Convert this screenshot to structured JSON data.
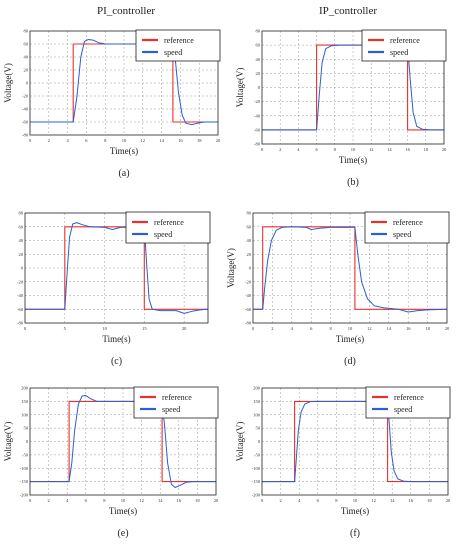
{
  "column_titles": [
    "PI_controller",
    "IP_controller"
  ],
  "chart_data": [
    {
      "type": "line",
      "panel": "a",
      "caption": "(a)",
      "xlabel": "Time(s)",
      "ylabel": "Voltage(V)",
      "xlim": [
        0,
        20
      ],
      "ylim": [
        -80,
        80
      ],
      "xticks": [
        0,
        2,
        4,
        6,
        8,
        10,
        12,
        14,
        16,
        18,
        20
      ],
      "yticks": [
        -80,
        -60,
        -40,
        -20,
        0,
        20,
        40,
        60,
        80
      ],
      "grid": true,
      "legend_position": "top-right",
      "series": [
        {
          "name": "reference",
          "color": "#e8312a",
          "points": [
            [
              0,
              -60
            ],
            [
              4.6,
              -60
            ],
            [
              4.6,
              60
            ],
            [
              15.2,
              60
            ],
            [
              15.2,
              -60
            ],
            [
              20,
              -60
            ]
          ]
        },
        {
          "name": "speed",
          "color": "#2a5fd6",
          "points": [
            [
              0,
              -60
            ],
            [
              4.6,
              -60
            ],
            [
              5.0,
              -20
            ],
            [
              5.4,
              40
            ],
            [
              5.8,
              64
            ],
            [
              6.2,
              67
            ],
            [
              6.7,
              66
            ],
            [
              7.3,
              62
            ],
            [
              8.0,
              60
            ],
            [
              15.2,
              60
            ],
            [
              15.5,
              30
            ],
            [
              15.8,
              -15
            ],
            [
              16.2,
              -50
            ],
            [
              16.6,
              -62
            ],
            [
              17.2,
              -64
            ],
            [
              17.8,
              -62
            ],
            [
              18.5,
              -60
            ],
            [
              20,
              -60
            ]
          ]
        }
      ]
    },
    {
      "type": "line",
      "panel": "b",
      "caption": "(b)",
      "xlabel": "Time(s)",
      "ylabel": "Voltage(V)",
      "xlim": [
        0,
        20
      ],
      "ylim": [
        -80,
        80
      ],
      "xticks": [
        0,
        2,
        4,
        6,
        8,
        10,
        12,
        14,
        16,
        18,
        20
      ],
      "yticks": [
        -80,
        -60,
        -40,
        -20,
        0,
        20,
        40,
        60,
        80
      ],
      "grid": true,
      "legend_position": "top-right",
      "series": [
        {
          "name": "reference",
          "color": "#e8312a",
          "points": [
            [
              0,
              -60
            ],
            [
              6,
              -60
            ],
            [
              6,
              60
            ],
            [
              16,
              60
            ],
            [
              16,
              -60
            ],
            [
              20,
              -60
            ]
          ]
        },
        {
          "name": "speed",
          "color": "#2a5fd6",
          "points": [
            [
              0,
              -60
            ],
            [
              6,
              -60
            ],
            [
              6.3,
              -10
            ],
            [
              6.6,
              35
            ],
            [
              7.0,
              55
            ],
            [
              7.6,
              59
            ],
            [
              8.5,
              60
            ],
            [
              16,
              60
            ],
            [
              16.3,
              10
            ],
            [
              16.6,
              -35
            ],
            [
              17.0,
              -55
            ],
            [
              17.6,
              -59
            ],
            [
              18.5,
              -60
            ],
            [
              20,
              -60
            ]
          ]
        }
      ]
    },
    {
      "type": "line",
      "panel": "c",
      "caption": "(c)",
      "xlabel": "Time(s)",
      "ylabel": "",
      "xlim": [
        0,
        23
      ],
      "ylim": [
        -80,
        80
      ],
      "xticks": [
        0,
        5,
        10,
        15,
        20
      ],
      "yticks": [
        -80,
        -60,
        -40,
        -20,
        0,
        20,
        40,
        60,
        80
      ],
      "grid": true,
      "legend_position": "top-right",
      "series": [
        {
          "name": "reference",
          "color": "#e8312a",
          "points": [
            [
              0,
              -60
            ],
            [
              5,
              -60
            ],
            [
              5,
              60
            ],
            [
              15,
              60
            ],
            [
              15,
              -60
            ],
            [
              23,
              -60
            ]
          ]
        },
        {
          "name": "speed",
          "color": "#2a5fd6",
          "points": [
            [
              0,
              -60
            ],
            [
              5,
              -60
            ],
            [
              5.3,
              -5
            ],
            [
              5.6,
              45
            ],
            [
              6.0,
              64
            ],
            [
              6.5,
              66
            ],
            [
              7.2,
              63
            ],
            [
              8.2,
              60
            ],
            [
              10,
              59
            ],
            [
              11,
              56
            ],
            [
              12,
              59
            ],
            [
              15,
              60
            ],
            [
              15.3,
              5
            ],
            [
              15.6,
              -45
            ],
            [
              16.0,
              -60
            ],
            [
              17,
              -62
            ],
            [
              19,
              -62
            ],
            [
              20,
              -66
            ],
            [
              21,
              -63
            ],
            [
              22,
              -61
            ],
            [
              23,
              -60
            ]
          ]
        }
      ]
    },
    {
      "type": "line",
      "panel": "d",
      "caption": "(d)",
      "xlabel": "Time(s)",
      "ylabel": "Voltage(V)",
      "xlim": [
        0,
        20
      ],
      "ylim": [
        -80,
        80
      ],
      "xticks": [
        0,
        2,
        4,
        6,
        8,
        10,
        12,
        14,
        16,
        18,
        20
      ],
      "yticks": [
        -80,
        -60,
        -40,
        -20,
        0,
        20,
        40,
        60,
        80
      ],
      "grid": true,
      "legend_position": "top-right",
      "series": [
        {
          "name": "reference",
          "color": "#e8312a",
          "points": [
            [
              0,
              -60
            ],
            [
              1,
              -60
            ],
            [
              1,
              60
            ],
            [
              10.5,
              60
            ],
            [
              10.5,
              -60
            ],
            [
              20,
              -60
            ]
          ]
        },
        {
          "name": "speed",
          "color": "#2a5fd6",
          "points": [
            [
              0,
              -60
            ],
            [
              1,
              -60
            ],
            [
              1.2,
              -30
            ],
            [
              1.5,
              10
            ],
            [
              1.9,
              40
            ],
            [
              2.4,
              55
            ],
            [
              3.0,
              59
            ],
            [
              4,
              60
            ],
            [
              5.5,
              59
            ],
            [
              6,
              56
            ],
            [
              7,
              58
            ],
            [
              8,
              59
            ],
            [
              10.5,
              59
            ],
            [
              10.8,
              20
            ],
            [
              11.2,
              -20
            ],
            [
              11.8,
              -45
            ],
            [
              12.5,
              -55
            ],
            [
              13.5,
              -58
            ],
            [
              15,
              -60
            ],
            [
              16,
              -64
            ],
            [
              17,
              -62
            ],
            [
              18,
              -61
            ],
            [
              20,
              -60
            ]
          ]
        }
      ]
    },
    {
      "type": "line",
      "panel": "e",
      "caption": "(e)",
      "xlabel": "Time(s)",
      "ylabel": "Voltage(V)",
      "xlim": [
        0,
        20
      ],
      "ylim": [
        -200,
        200
      ],
      "xticks": [
        0,
        2,
        4,
        6,
        8,
        10,
        12,
        14,
        16,
        18,
        20
      ],
      "yticks": [
        -200,
        -150,
        -100,
        -50,
        0,
        50,
        100,
        150,
        200
      ],
      "grid": true,
      "legend_position": "top-right",
      "series": [
        {
          "name": "reference",
          "color": "#e8312a",
          "points": [
            [
              0,
              -150
            ],
            [
              4.2,
              -150
            ],
            [
              4.2,
              150
            ],
            [
              14.2,
              150
            ],
            [
              14.2,
              -150
            ],
            [
              20,
              -150
            ]
          ]
        },
        {
          "name": "speed",
          "color": "#2a5fd6",
          "points": [
            [
              0,
              -150
            ],
            [
              4.2,
              -150
            ],
            [
              4.5,
              -80
            ],
            [
              4.8,
              40
            ],
            [
              5.2,
              140
            ],
            [
              5.6,
              170
            ],
            [
              6.0,
              172
            ],
            [
              6.5,
              160
            ],
            [
              7.2,
              150
            ],
            [
              14.2,
              150
            ],
            [
              14.5,
              50
            ],
            [
              14.8,
              -80
            ],
            [
              15.2,
              -160
            ],
            [
              15.6,
              -172
            ],
            [
              16.1,
              -165
            ],
            [
              16.8,
              -152
            ],
            [
              17.5,
              -150
            ],
            [
              20,
              -150
            ]
          ]
        }
      ]
    },
    {
      "type": "line",
      "panel": "f",
      "caption": "(f)",
      "xlabel": "Time(s)",
      "ylabel": "Voltage(V)",
      "xlim": [
        0,
        20
      ],
      "ylim": [
        -200,
        200
      ],
      "xticks": [
        0,
        2,
        4,
        6,
        8,
        10,
        12,
        14,
        16,
        18,
        20
      ],
      "yticks": [
        -200,
        -150,
        -100,
        -50,
        0,
        50,
        100,
        150,
        200
      ],
      "grid": true,
      "legend_position": "top-right",
      "series": [
        {
          "name": "reference",
          "color": "#e8312a",
          "points": [
            [
              0,
              -150
            ],
            [
              3.5,
              -150
            ],
            [
              3.5,
              150
            ],
            [
              13.5,
              150
            ],
            [
              13.5,
              -150
            ],
            [
              20,
              -150
            ]
          ]
        },
        {
          "name": "speed",
          "color": "#2a5fd6",
          "points": [
            [
              0,
              -150
            ],
            [
              3.5,
              -150
            ],
            [
              3.7,
              -60
            ],
            [
              3.9,
              40
            ],
            [
              4.2,
              110
            ],
            [
              4.6,
              140
            ],
            [
              5.2,
              149
            ],
            [
              6,
              150
            ],
            [
              13.5,
              150
            ],
            [
              13.7,
              60
            ],
            [
              13.9,
              -40
            ],
            [
              14.2,
              -110
            ],
            [
              14.6,
              -140
            ],
            [
              15.2,
              -148
            ],
            [
              16,
              -150
            ],
            [
              20,
              -150
            ]
          ]
        }
      ]
    }
  ]
}
